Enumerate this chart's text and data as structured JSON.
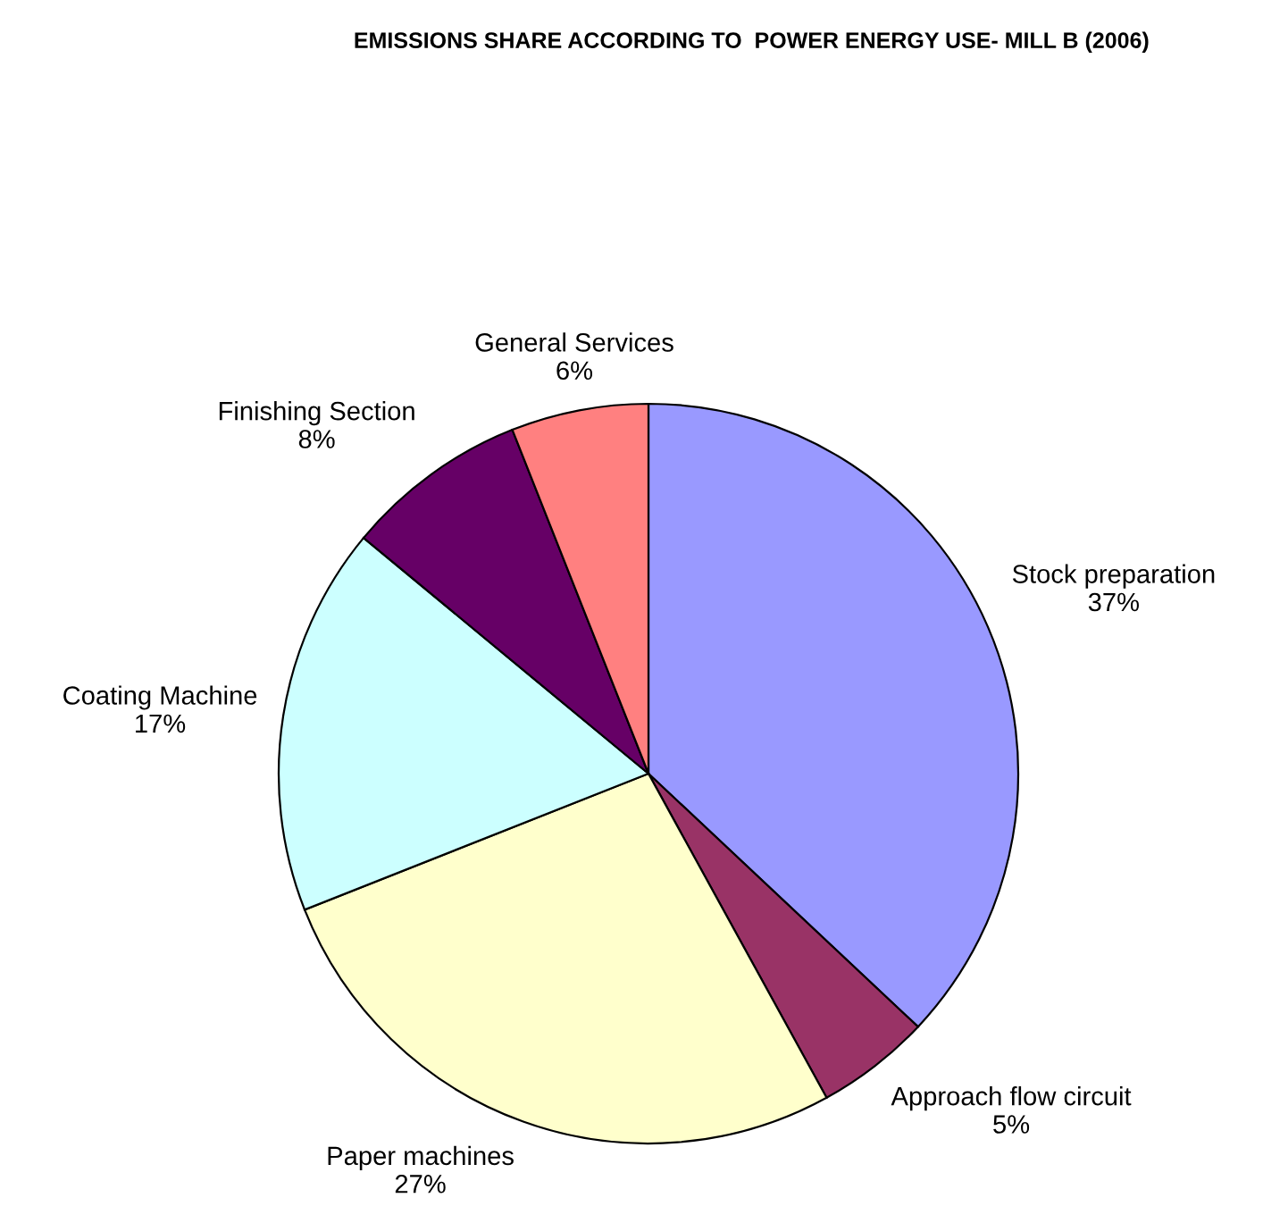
{
  "chart_data": {
    "type": "pie",
    "title": "EMISSIONS SHARE ACCORDING TO  POWER ENERGY USE- MILL B (2006)",
    "categories": [
      "Stock preparation",
      "Approach flow circuit",
      "Paper machines",
      "Coating Machine",
      "Finishing Section",
      "General Services"
    ],
    "values": [
      37,
      5,
      27,
      17,
      8,
      6
    ],
    "value_labels": [
      "37%",
      "5%",
      "27%",
      "17%",
      "8%",
      "6%"
    ],
    "colors": [
      "#9999ff",
      "#993366",
      "#ffffcc",
      "#ccffff",
      "#660066",
      "#ff8080"
    ],
    "legend": false
  }
}
